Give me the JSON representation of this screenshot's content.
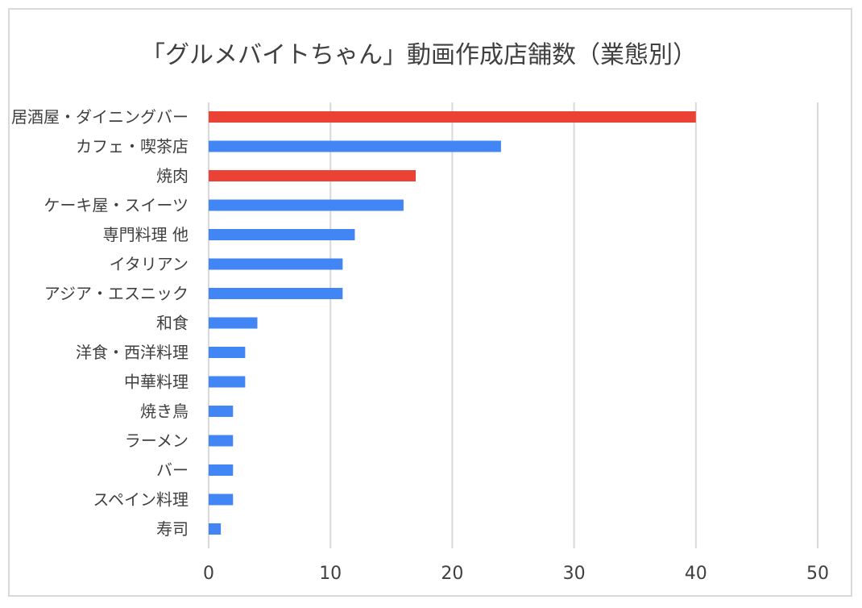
{
  "chart_data": {
    "type": "bar",
    "orientation": "horizontal",
    "title": "「グルメバイトちゃん」動画作成店舗数（業態別）",
    "categories": [
      "居酒屋・ダイニングバー",
      "カフェ・喫茶店",
      "焼肉",
      "ケーキ屋・スイーツ",
      "専門料理 他",
      "イタリアン",
      "アジア・エスニック",
      "和食",
      "洋食・西洋料理",
      "中華料理",
      "焼き鳥",
      "ラーメン",
      "バー",
      "スペイン料理",
      "寿司"
    ],
    "values": [
      40,
      24,
      17,
      16,
      12,
      11,
      11,
      4,
      3,
      3,
      2,
      2,
      2,
      2,
      1
    ],
    "highlight": [
      true,
      false,
      true,
      false,
      false,
      false,
      false,
      false,
      false,
      false,
      false,
      false,
      false,
      false,
      false
    ],
    "xlim": [
      0,
      50
    ],
    "xticks": [
      "0",
      "10",
      "20",
      "30",
      "40",
      "50"
    ],
    "grid": true,
    "colors": {
      "bar": "#4285f4",
      "highlight": "#ea4335",
      "grid": "#d9d9d9",
      "text": "#404040"
    }
  }
}
